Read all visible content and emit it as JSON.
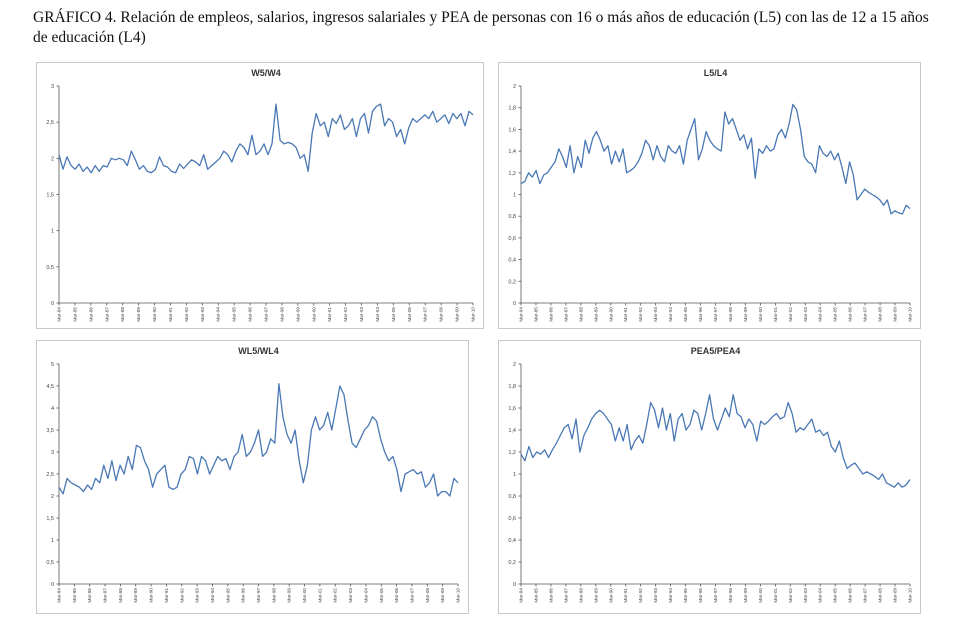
{
  "title": "GRÁFICO 4. Relación de empleos, salarios, ingresos salariales y PEA de personas con 16 o más años de educación (L5) con las de 12 a 15 años de educación (L4)",
  "line_color": "#4a78b5",
  "chart_data": [
    {
      "type": "line",
      "title": "W5/W4",
      "ylim": [
        0,
        3
      ],
      "yticks": [
        "0",
        "0,5",
        "1",
        "1,5",
        "2",
        "2,5",
        "3"
      ],
      "xlabels": [
        "Mar-84",
        "Mar-85",
        "Mar-86",
        "Mar-87",
        "Mar-88",
        "Mar-89",
        "Mar-90",
        "Mar-91",
        "Mar-92",
        "Mar-93",
        "Mar-94",
        "Mar-95",
        "Mar-96",
        "Mar-97",
        "Mar-98",
        "Mar-99",
        "Mar-00",
        "Mar-01",
        "Mar-02",
        "Mar-03",
        "Mar-04",
        "Mar-05",
        "Mar-06",
        "Mar-07",
        "Mar-08",
        "Mar-09",
        "Mar-10"
      ],
      "grid": false,
      "values": [
        2.05,
        1.85,
        2.02,
        1.9,
        1.85,
        1.92,
        1.82,
        1.88,
        1.8,
        1.9,
        1.82,
        1.9,
        1.88,
        2.0,
        1.98,
        2.0,
        1.98,
        1.9,
        2.1,
        1.98,
        1.85,
        1.9,
        1.82,
        1.8,
        1.85,
        2.02,
        1.9,
        1.88,
        1.82,
        1.8,
        1.92,
        1.86,
        1.92,
        1.98,
        1.95,
        1.9,
        2.05,
        1.85,
        1.9,
        1.95,
        2.0,
        2.1,
        2.05,
        1.95,
        2.1,
        2.2,
        2.15,
        2.05,
        2.32,
        2.05,
        2.1,
        2.2,
        2.05,
        2.2,
        2.75,
        2.25,
        2.2,
        2.22,
        2.2,
        2.15,
        2.0,
        2.05,
        1.82,
        2.35,
        2.62,
        2.45,
        2.5,
        2.3,
        2.55,
        2.48,
        2.6,
        2.4,
        2.45,
        2.55,
        2.3,
        2.55,
        2.62,
        2.35,
        2.65,
        2.72,
        2.75,
        2.45,
        2.55,
        2.5,
        2.3,
        2.4,
        2.2,
        2.42,
        2.55,
        2.5,
        2.55,
        2.6,
        2.55,
        2.65,
        2.5,
        2.55,
        2.6,
        2.48,
        2.62,
        2.55,
        2.62,
        2.45,
        2.65,
        2.6
      ]
    },
    {
      "type": "line",
      "title": "L5/L4",
      "ylim": [
        0,
        2
      ],
      "yticks": [
        "0",
        "0,2",
        "0,4",
        "0,6",
        "0,8",
        "1",
        "1,2",
        "1,4",
        "1,6",
        "1,8",
        "2"
      ],
      "xlabels": [
        "Mar-84",
        "Mar-85",
        "Mar-86",
        "Mar-87",
        "Mar-88",
        "Mar-89",
        "Mar-90",
        "Mar-91",
        "Mar-92",
        "Mar-93",
        "Mar-94",
        "Mar-95",
        "Mar-96",
        "Mar-97",
        "Mar-98",
        "Mar-99",
        "Mar-00",
        "Mar-01",
        "Mar-02",
        "Mar-03",
        "Mar-04",
        "Mar-05",
        "Mar-06",
        "Mar-07",
        "Mar-08",
        "Mar-09",
        "Mar-10"
      ],
      "grid": false,
      "values": [
        1.1,
        1.12,
        1.2,
        1.16,
        1.22,
        1.1,
        1.18,
        1.2,
        1.25,
        1.3,
        1.42,
        1.35,
        1.25,
        1.45,
        1.2,
        1.35,
        1.25,
        1.5,
        1.38,
        1.52,
        1.58,
        1.5,
        1.4,
        1.45,
        1.28,
        1.4,
        1.3,
        1.42,
        1.2,
        1.22,
        1.25,
        1.3,
        1.38,
        1.5,
        1.45,
        1.32,
        1.45,
        1.35,
        1.3,
        1.45,
        1.4,
        1.38,
        1.45,
        1.28,
        1.5,
        1.6,
        1.7,
        1.32,
        1.42,
        1.58,
        1.5,
        1.45,
        1.42,
        1.4,
        1.76,
        1.65,
        1.7,
        1.6,
        1.5,
        1.55,
        1.42,
        1.52,
        1.15,
        1.42,
        1.38,
        1.45,
        1.4,
        1.42,
        1.55,
        1.6,
        1.52,
        1.65,
        1.83,
        1.78,
        1.6,
        1.35,
        1.3,
        1.28,
        1.2,
        1.45,
        1.38,
        1.35,
        1.4,
        1.32,
        1.38,
        1.25,
        1.1,
        1.3,
        1.18,
        0.95,
        1.0,
        1.05,
        1.02,
        1.0,
        0.98,
        0.95,
        0.9,
        0.95,
        0.82,
        0.85,
        0.83,
        0.82,
        0.9,
        0.87
      ]
    },
    {
      "type": "line",
      "title": "WL5/WL4",
      "ylim": [
        0,
        5
      ],
      "yticks": [
        "0",
        "0,5",
        "1",
        "1,5",
        "2",
        "2,5",
        "3",
        "3,5",
        "4",
        "4,5",
        "5"
      ],
      "xlabels": [
        "Mar-84",
        "Mar-85",
        "Mar-86",
        "Mar-87",
        "Mar-88",
        "Mar-89",
        "Mar-90",
        "Mar-91",
        "Mar-92",
        "Mar-93",
        "Mar-94",
        "Mar-95",
        "Mar-96",
        "Mar-97",
        "Mar-98",
        "Mar-99",
        "Mar-00",
        "Mar-01",
        "Mar-02",
        "Mar-03",
        "Mar-04",
        "Mar-05",
        "Mar-06",
        "Mar-07",
        "Mar-08",
        "Mar-09",
        "Mar-10"
      ],
      "grid": false,
      "values": [
        2.2,
        2.05,
        2.4,
        2.3,
        2.25,
        2.2,
        2.1,
        2.25,
        2.15,
        2.4,
        2.3,
        2.7,
        2.4,
        2.8,
        2.35,
        2.7,
        2.5,
        2.9,
        2.6,
        3.15,
        3.1,
        2.8,
        2.6,
        2.2,
        2.5,
        2.6,
        2.7,
        2.2,
        2.15,
        2.2,
        2.5,
        2.6,
        2.9,
        2.85,
        2.5,
        2.9,
        2.8,
        2.5,
        2.7,
        2.9,
        2.8,
        2.85,
        2.6,
        2.9,
        3.0,
        3.4,
        2.9,
        3.0,
        3.2,
        3.5,
        2.9,
        3.0,
        3.3,
        3.2,
        4.55,
        3.8,
        3.4,
        3.2,
        3.5,
        2.8,
        2.3,
        2.7,
        3.5,
        3.8,
        3.5,
        3.6,
        3.9,
        3.5,
        4.0,
        4.5,
        4.3,
        3.7,
        3.2,
        3.1,
        3.3,
        3.5,
        3.6,
        3.8,
        3.7,
        3.3,
        3.0,
        2.8,
        2.9,
        2.6,
        2.1,
        2.5,
        2.55,
        2.6,
        2.5,
        2.55,
        2.2,
        2.3,
        2.5,
        2.0,
        2.1,
        2.1,
        2.0,
        2.4,
        2.3
      ]
    },
    {
      "type": "line",
      "title": "PEA5/PEA4",
      "ylim": [
        0,
        2
      ],
      "yticks": [
        "0",
        "0,2",
        "0,4",
        "0,6",
        "0,8",
        "1",
        "1,2",
        "1,4",
        "1,6",
        "1,8",
        "2"
      ],
      "xlabels": [
        "Mar-84",
        "Mar-85",
        "Mar-86",
        "Mar-87",
        "Mar-88",
        "Mar-89",
        "Mar-90",
        "Mar-91",
        "Mar-92",
        "Mar-93",
        "Mar-94",
        "Mar-95",
        "Mar-96",
        "Mar-97",
        "Mar-98",
        "Mar-99",
        "Mar-00",
        "Mar-01",
        "Mar-02",
        "Mar-03",
        "Mar-04",
        "Mar-05",
        "Mar-06",
        "Mar-07",
        "Mar-08",
        "Mar-09",
        "Mar-10"
      ],
      "grid": false,
      "values": [
        1.18,
        1.12,
        1.25,
        1.15,
        1.2,
        1.18,
        1.22,
        1.15,
        1.22,
        1.28,
        1.35,
        1.42,
        1.45,
        1.32,
        1.5,
        1.2,
        1.35,
        1.42,
        1.5,
        1.55,
        1.58,
        1.55,
        1.5,
        1.45,
        1.3,
        1.42,
        1.3,
        1.45,
        1.22,
        1.3,
        1.35,
        1.28,
        1.45,
        1.65,
        1.58,
        1.42,
        1.6,
        1.4,
        1.55,
        1.3,
        1.5,
        1.55,
        1.4,
        1.45,
        1.58,
        1.55,
        1.4,
        1.55,
        1.72,
        1.5,
        1.4,
        1.5,
        1.6,
        1.52,
        1.72,
        1.55,
        1.52,
        1.42,
        1.5,
        1.45,
        1.3,
        1.48,
        1.45,
        1.48,
        1.52,
        1.55,
        1.5,
        1.52,
        1.65,
        1.55,
        1.38,
        1.42,
        1.4,
        1.45,
        1.5,
        1.38,
        1.4,
        1.35,
        1.38,
        1.25,
        1.2,
        1.3,
        1.15,
        1.05,
        1.08,
        1.1,
        1.05,
        1.0,
        1.02,
        1.0,
        0.98,
        0.95,
        1.0,
        0.92,
        0.9,
        0.88,
        0.92,
        0.88,
        0.9,
        0.95
      ]
    }
  ]
}
